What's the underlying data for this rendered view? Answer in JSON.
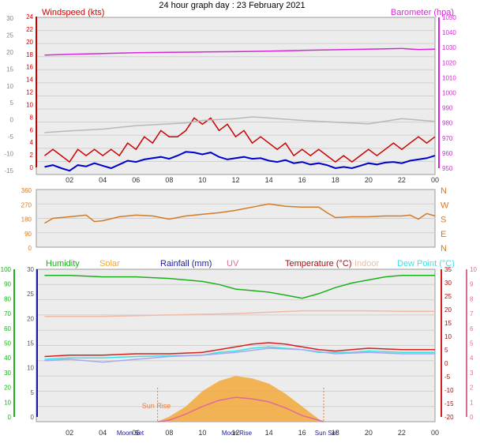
{
  "title": "24 hour graph day : 23 February 2021",
  "colors": {
    "windspeed": "#cc0000",
    "baro": "#d626d6",
    "avg": "#0000cc",
    "gust_gray": "#b8b8b8",
    "winddir": "#d27a28",
    "humidity": "#1ab11a",
    "solar": "#f2a93a",
    "rain": "#1a1aa0",
    "uv": "#e06a9a",
    "temperature": "#d42020",
    "indoor": "#f3b9a7",
    "dewpoint": "#3ae3e3",
    "feels": "#a8a8f0",
    "sunline": "#e87d3c"
  },
  "x_ticks": [
    "02",
    "04",
    "06",
    "08",
    "10",
    "12",
    "14",
    "16",
    "18",
    "20",
    "22",
    "00"
  ],
  "chart_data": [
    {
      "type": "line",
      "panel": "wind",
      "left_label": "Windspeed (kts)",
      "right_label": "Barometer (hpa)",
      "left_ticks": [
        "24",
        "22",
        "20",
        "18",
        "16",
        "14",
        "12",
        "10",
        "8",
        "6",
        "4",
        "2",
        "0"
      ],
      "far_left_ticks": [
        "30",
        "25",
        "20",
        "15",
        "10",
        "5",
        "0",
        "-5",
        "-10",
        "-15"
      ],
      "right_ticks": [
        "1050",
        "1040",
        "1030",
        "1020",
        "1010",
        "1000",
        "990",
        "980",
        "970",
        "960",
        "950"
      ],
      "ylim": [
        0,
        25
      ],
      "series": [
        {
          "key": "gust",
          "color_key": "windspeed",
          "x": [
            0.5,
            1,
            1.5,
            2,
            2.5,
            3,
            3.5,
            4,
            4.5,
            5,
            5.5,
            6,
            6.5,
            7,
            7.5,
            8,
            8.5,
            9,
            9.5,
            10,
            10.5,
            11,
            11.5,
            12,
            12.5,
            13,
            13.5,
            14,
            14.5,
            15,
            15.5,
            16,
            16.5,
            17,
            17.5,
            18,
            18.5,
            19,
            19.5,
            20,
            20.5,
            21,
            21.5,
            22,
            22.5,
            23,
            23.5,
            24
          ],
          "values": [
            3,
            4,
            3,
            2,
            4,
            3,
            4,
            3,
            4,
            3,
            5,
            4,
            6,
            5,
            7,
            6,
            6,
            7,
            9,
            8,
            9,
            7,
            8,
            6,
            7,
            5,
            6,
            5,
            4,
            5,
            3,
            4,
            3,
            4,
            3,
            2,
            3,
            2,
            3,
            4,
            3,
            4,
            5,
            4,
            5,
            6,
            5,
            6
          ]
        },
        {
          "key": "avg",
          "color_key": "avg",
          "x": [
            0.5,
            1,
            1.5,
            2,
            2.5,
            3,
            3.5,
            4,
            4.5,
            5,
            5.5,
            6,
            6.5,
            7,
            7.5,
            8,
            8.5,
            9,
            9.5,
            10,
            10.5,
            11,
            11.5,
            12,
            12.5,
            13,
            13.5,
            14,
            14.5,
            15,
            15.5,
            16,
            16.5,
            17,
            17.5,
            18,
            18.5,
            19,
            19.5,
            20,
            20.5,
            21,
            21.5,
            22,
            22.5,
            23,
            23.5,
            24
          ],
          "values": [
            1.2,
            1.5,
            1.0,
            0.6,
            1.5,
            1.3,
            1.8,
            1.4,
            1.0,
            1.6,
            2.2,
            2.0,
            2.4,
            2.6,
            2.8,
            2.5,
            3.0,
            3.6,
            3.5,
            3.2,
            3.5,
            2.8,
            2.4,
            2.6,
            2.8,
            2.5,
            2.6,
            2.2,
            2.0,
            2.3,
            1.8,
            2.0,
            1.6,
            1.8,
            1.5,
            1.0,
            1.2,
            1.0,
            1.4,
            1.8,
            1.6,
            1.9,
            2.0,
            1.8,
            2.2,
            2.4,
            2.6,
            3.0
          ]
        },
        {
          "key": "baro",
          "color_key": "baro",
          "x": [
            0.5,
            2,
            4,
            6,
            8,
            10,
            12,
            14,
            16,
            18,
            20,
            22,
            23,
            24
          ],
          "values": [
            1026,
            1026.5,
            1027,
            1027.5,
            1027.8,
            1028,
            1028.2,
            1028.5,
            1029,
            1029.4,
            1029.8,
            1030.2,
            1029.5,
            1029.8
          ]
        },
        {
          "key": "gray",
          "color_key": "gust_gray",
          "x": [
            0.5,
            2,
            4,
            6,
            8,
            9,
            10,
            12,
            13,
            14,
            16,
            18,
            20,
            22,
            24
          ],
          "values": [
            -3,
            -2.5,
            -2,
            -1,
            -0.5,
            -0.2,
            0.5,
            1,
            1.5,
            1.2,
            0.5,
            0,
            -0.5,
            1,
            0.2
          ]
        }
      ]
    },
    {
      "type": "line",
      "panel": "direction",
      "ticks": [
        "360",
        "270",
        "180",
        "90",
        "0"
      ],
      "compass": [
        "N",
        "W",
        "S",
        "E",
        "N"
      ],
      "ylim": [
        0,
        360
      ],
      "series": [
        {
          "key": "dir",
          "color_key": "winddir",
          "x": [
            0.5,
            1,
            2,
            3,
            3.5,
            4,
            5,
            6,
            7,
            8,
            9,
            10,
            11,
            12,
            13,
            14,
            15,
            16,
            17,
            17.5,
            18,
            19,
            20,
            21,
            22,
            22.5,
            23,
            23.5,
            24
          ],
          "values": [
            150,
            180,
            190,
            200,
            160,
            165,
            190,
            200,
            195,
            175,
            195,
            205,
            215,
            230,
            250,
            270,
            255,
            250,
            250,
            215,
            185,
            190,
            190,
            195,
            195,
            200,
            175,
            210,
            195
          ]
        }
      ]
    },
    {
      "type": "line",
      "panel": "temperature",
      "legend": [
        "Humidity",
        "Solar",
        "Rainfall (mm)",
        "UV",
        "Temperature (°C)",
        "Indoor",
        "Dew Point (°C)"
      ],
      "humidity_ticks": [
        "100",
        "90",
        "80",
        "70",
        "60",
        "50",
        "40",
        "30",
        "20",
        "10",
        "0"
      ],
      "solar_ticks": [
        "30",
        "25",
        "20",
        "15",
        "10",
        "5",
        "0"
      ],
      "temp_ticks": [
        "35",
        "30",
        "25",
        "20",
        "15",
        "10",
        "5",
        "0",
        "-5",
        "-10",
        "-15",
        "-20"
      ],
      "uv_ticks": [
        "10",
        "9",
        "8",
        "7",
        "6",
        "5",
        "4",
        "3",
        "2",
        "1",
        "0"
      ],
      "annotations": [
        "Sun Rise",
        "Moon Set",
        "Moon Rise",
        "Sun Set"
      ],
      "series": [
        {
          "key": "humidity",
          "color_key": "humidity",
          "x": [
            0.5,
            2,
            4,
            6,
            8,
            10,
            11,
            12,
            13,
            14,
            15,
            16,
            17,
            18,
            19,
            20,
            21,
            22,
            24
          ],
          "values": [
            96,
            96,
            95,
            95,
            94,
            92,
            90,
            87,
            86,
            85,
            83,
            81,
            84,
            88,
            91,
            93,
            95,
            96,
            96
          ]
        },
        {
          "key": "indoor",
          "color_key": "indoor",
          "x": [
            0.5,
            4,
            8,
            12,
            14,
            16,
            18,
            20,
            22,
            24
          ],
          "values": [
            18,
            18,
            18.5,
            19,
            19.5,
            20,
            20,
            20,
            19.8,
            19.8
          ]
        },
        {
          "key": "temperature",
          "color_key": "temperature",
          "x": [
            0.5,
            2,
            4,
            6,
            8,
            10,
            11,
            12,
            13,
            14,
            15,
            16,
            17,
            18,
            19,
            20,
            22,
            24
          ],
          "values": [
            3.5,
            4,
            4,
            4.5,
            4.5,
            5,
            6,
            7,
            8,
            8.5,
            8,
            7,
            6,
            5.5,
            6,
            6.5,
            6,
            6
          ]
        },
        {
          "key": "dew",
          "color_key": "dewpoint",
          "x": [
            0.5,
            2,
            4,
            6,
            8,
            10,
            11,
            12,
            13,
            14,
            15,
            16,
            17,
            18,
            19,
            20,
            22,
            24
          ],
          "values": [
            2.5,
            3,
            3,
            3.5,
            3.8,
            4,
            5,
            5.5,
            6.5,
            7,
            6.5,
            6,
            5,
            5,
            5,
            5.5,
            5,
            5
          ]
        },
        {
          "key": "feels",
          "color_key": "feels",
          "x": [
            0.5,
            2,
            4,
            6,
            8,
            10,
            12,
            14,
            16,
            18,
            20,
            22,
            24
          ],
          "values": [
            2,
            2.5,
            1.5,
            2.5,
            3.5,
            4,
            5,
            6.5,
            6,
            4.5,
            5,
            4.5,
            4.5
          ]
        },
        {
          "key": "solar",
          "color_key": "solar",
          "x": [
            7.3,
            8,
            9,
            10,
            11,
            12,
            13,
            14,
            15,
            16,
            17,
            17.3
          ],
          "values": [
            0,
            1,
            3,
            6,
            8,
            9,
            8.5,
            7.5,
            5.5,
            3,
            0.5,
            0
          ]
        },
        {
          "key": "uv",
          "color_key": "uv",
          "x": [
            7.3,
            8,
            9,
            10,
            11,
            12,
            13,
            14,
            15,
            16,
            17,
            17.3
          ],
          "values": [
            0,
            0.1,
            0.5,
            1,
            1.4,
            1.6,
            1.5,
            1.3,
            0.9,
            0.4,
            0.1,
            0
          ]
        }
      ]
    }
  ]
}
